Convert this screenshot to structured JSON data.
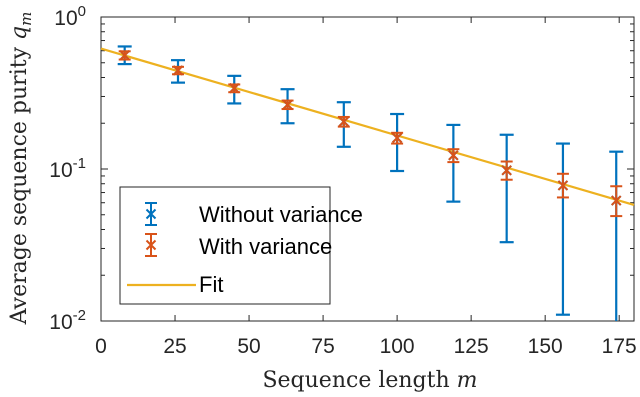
{
  "chart_data": {
    "type": "scatter",
    "xlabel": "Sequence length",
    "xlabel_var": "m",
    "ylabel": "Average sequence purity",
    "ylabel_var": "q",
    "ylabel_sub": "m",
    "y_scale": "log",
    "xlim": [
      0,
      180
    ],
    "ylim": [
      0.01,
      1
    ],
    "x_ticks": [
      0,
      25,
      50,
      75,
      100,
      125,
      150,
      175
    ],
    "y_ticks": [
      {
        "value": 0.01,
        "base": "10",
        "exp": "-2"
      },
      {
        "value": 0.1,
        "base": "10",
        "exp": "-1"
      },
      {
        "value": 1,
        "base": "10",
        "exp": "0"
      }
    ],
    "grid": false,
    "legend_position": "bottom-left",
    "x": [
      8,
      26,
      45,
      63,
      82,
      100,
      119,
      137,
      156,
      174
    ],
    "series": [
      {
        "name": "Without variance",
        "style": "errorbar",
        "color": "#0072BD",
        "y": [
          0.56,
          0.445,
          0.34,
          0.265,
          0.205,
          0.16,
          0.123,
          0.098,
          0.078,
          0.062
        ],
        "y_upper": [
          0.64,
          0.52,
          0.41,
          0.335,
          0.275,
          0.23,
          0.195,
          0.168,
          0.147,
          0.13
        ],
        "y_lower": [
          0.49,
          0.37,
          0.27,
          0.2,
          0.14,
          0.097,
          0.061,
          0.033,
          0.011,
          0.0095
        ]
      },
      {
        "name": "With variance",
        "style": "errorbar",
        "color": "#D95319",
        "y": [
          0.56,
          0.445,
          0.34,
          0.265,
          0.205,
          0.16,
          0.123,
          0.098,
          0.078,
          0.062
        ],
        "y_upper": [
          0.595,
          0.47,
          0.36,
          0.282,
          0.22,
          0.173,
          0.135,
          0.112,
          0.093,
          0.077
        ],
        "y_lower": [
          0.525,
          0.42,
          0.32,
          0.248,
          0.19,
          0.147,
          0.111,
          0.085,
          0.065,
          0.049
        ]
      },
      {
        "name": "Fit",
        "style": "line",
        "color": "#EDB120",
        "x": [
          0,
          180
        ],
        "y": [
          0.62,
          0.058
        ]
      }
    ]
  }
}
